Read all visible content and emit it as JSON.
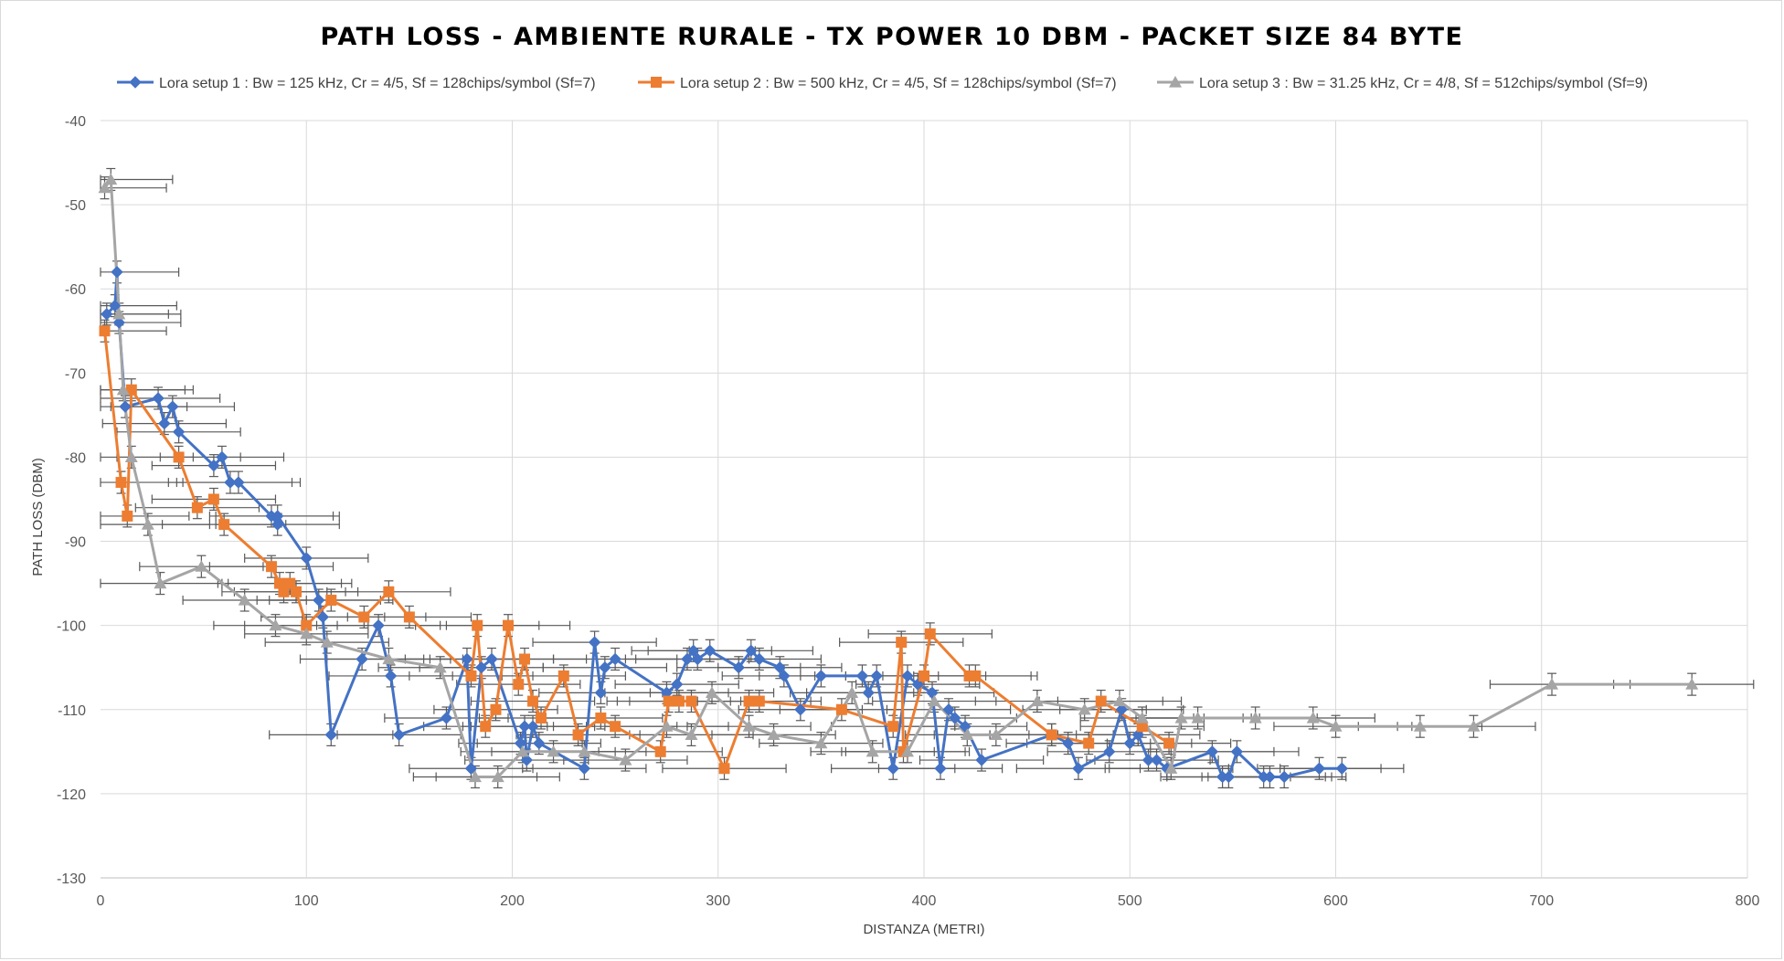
{
  "chart_data": {
    "type": "scatter",
    "title": "PATH LOSS - AMBIENTE RURALE - TX POWER 10 DBM - PACKET SIZE 84 BYTE",
    "xlabel": "DISTANZA (METRI)",
    "ylabel": "PATH LOSS (DBM)",
    "xlim": [
      0,
      800
    ],
    "ylim": [
      -130,
      -40
    ],
    "xticks": [
      "0",
      "100",
      "200",
      "300",
      "400",
      "500",
      "600",
      "700",
      "800"
    ],
    "yticks": [
      "-40",
      "-50",
      "-60",
      "-70",
      "-80",
      "-90",
      "-100",
      "-110",
      "-120",
      "-130"
    ],
    "grid": true,
    "legend_position": "top",
    "lines_connected": true,
    "error_bar_color": "#595959",
    "series": [
      {
        "name": "Lora setup 1 : Bw = 125 kHz, Cr = 4/5, Sf = 128chips/symbol (Sf=7)",
        "color": "#4472C4",
        "marker": "diamond",
        "points": [
          [
            3,
            -63
          ],
          [
            7,
            -62
          ],
          [
            8,
            -58
          ],
          [
            9,
            -64
          ],
          [
            12,
            -74
          ],
          [
            28,
            -73
          ],
          [
            31,
            -76
          ],
          [
            35,
            -74
          ],
          [
            38,
            -77
          ],
          [
            55,
            -81
          ],
          [
            59,
            -80
          ],
          [
            63,
            -83
          ],
          [
            67,
            -83
          ],
          [
            83,
            -87
          ],
          [
            86,
            -88
          ],
          [
            86,
            -87
          ],
          [
            100,
            -92
          ],
          [
            106,
            -97
          ],
          [
            108,
            -99
          ],
          [
            112,
            -113
          ],
          [
            127,
            -104
          ],
          [
            135,
            -100
          ],
          [
            141,
            -106
          ],
          [
            145,
            -113
          ],
          [
            168,
            -111
          ],
          [
            178,
            -104
          ],
          [
            180,
            -117
          ],
          [
            185,
            -105
          ],
          [
            190,
            -104
          ],
          [
            204,
            -114
          ],
          [
            206,
            -112
          ],
          [
            207,
            -116
          ],
          [
            210,
            -112
          ],
          [
            213,
            -114
          ],
          [
            235,
            -117
          ],
          [
            240,
            -102
          ],
          [
            243,
            -108
          ],
          [
            245,
            -105
          ],
          [
            250,
            -104
          ],
          [
            275,
            -108
          ],
          [
            280,
            -107
          ],
          [
            285,
            -104
          ],
          [
            288,
            -103
          ],
          [
            290,
            -104
          ],
          [
            296,
            -103
          ],
          [
            310,
            -105
          ],
          [
            316,
            -103
          ],
          [
            320,
            -104
          ],
          [
            330,
            -105
          ],
          [
            332,
            -106
          ],
          [
            340,
            -110
          ],
          [
            350,
            -106
          ],
          [
            370,
            -106
          ],
          [
            373,
            -108
          ],
          [
            377,
            -106
          ],
          [
            385,
            -117
          ],
          [
            392,
            -106
          ],
          [
            397,
            -107
          ],
          [
            404,
            -108
          ],
          [
            408,
            -117
          ],
          [
            412,
            -110
          ],
          [
            415,
            -111
          ],
          [
            420,
            -112
          ],
          [
            428,
            -116
          ],
          [
            462,
            -113
          ],
          [
            470,
            -114
          ],
          [
            475,
            -117
          ],
          [
            490,
            -115
          ],
          [
            496,
            -110
          ],
          [
            500,
            -114
          ],
          [
            504,
            -113
          ],
          [
            509,
            -116
          ],
          [
            513,
            -116
          ],
          [
            518,
            -117
          ],
          [
            540,
            -115
          ],
          [
            545,
            -118
          ],
          [
            548,
            -118
          ],
          [
            552,
            -115
          ],
          [
            565,
            -118
          ],
          [
            568,
            -118
          ],
          [
            575,
            -118
          ],
          [
            592,
            -117
          ],
          [
            603,
            -117
          ]
        ],
        "x_error": 30,
        "y_error": 1.3
      },
      {
        "name": "Lora setup 2 : Bw = 500 kHz, Cr = 4/5, Sf = 128chips/symbol (Sf=7)",
        "color": "#ED7D31",
        "marker": "square",
        "points": [
          [
            2,
            -65
          ],
          [
            10,
            -83
          ],
          [
            13,
            -87
          ],
          [
            15,
            -72
          ],
          [
            38,
            -80
          ],
          [
            47,
            -86
          ],
          [
            55,
            -85
          ],
          [
            60,
            -88
          ],
          [
            83,
            -93
          ],
          [
            87,
            -95
          ],
          [
            89,
            -96
          ],
          [
            92,
            -95
          ],
          [
            95,
            -96
          ],
          [
            100,
            -100
          ],
          [
            112,
            -97
          ],
          [
            128,
            -99
          ],
          [
            140,
            -96
          ],
          [
            150,
            -99
          ],
          [
            180,
            -106
          ],
          [
            183,
            -100
          ],
          [
            187,
            -112
          ],
          [
            192,
            -110
          ],
          [
            198,
            -100
          ],
          [
            203,
            -107
          ],
          [
            206,
            -104
          ],
          [
            210,
            -109
          ],
          [
            214,
            -111
          ],
          [
            225,
            -106
          ],
          [
            232,
            -113
          ],
          [
            243,
            -111
          ],
          [
            250,
            -112
          ],
          [
            272,
            -115
          ],
          [
            276,
            -109
          ],
          [
            281,
            -109
          ],
          [
            287,
            -109
          ],
          [
            303,
            -117
          ],
          [
            315,
            -109
          ],
          [
            320,
            -109
          ],
          [
            360,
            -110
          ],
          [
            385,
            -112
          ],
          [
            389,
            -102
          ],
          [
            390,
            -115
          ],
          [
            400,
            -106
          ],
          [
            403,
            -101
          ],
          [
            422,
            -106
          ],
          [
            425,
            -106
          ],
          [
            462,
            -113
          ],
          [
            480,
            -114
          ],
          [
            486,
            -109
          ],
          [
            506,
            -112
          ],
          [
            519,
            -114
          ]
        ],
        "x_error": 30,
        "y_error": 1.3
      },
      {
        "name": "Lora setup 3 : Bw = 31.25 kHz, Cr = 4/8, Sf = 512chips/symbol (Sf=9)",
        "color": "#A5A5A5",
        "marker": "triangle",
        "points": [
          [
            2,
            -48
          ],
          [
            5,
            -47
          ],
          [
            9,
            -63
          ],
          [
            11,
            -72
          ],
          [
            15,
            -80
          ],
          [
            23,
            -88
          ],
          [
            29,
            -95
          ],
          [
            49,
            -93
          ],
          [
            70,
            -97
          ],
          [
            85,
            -100
          ],
          [
            100,
            -101
          ],
          [
            110,
            -102
          ],
          [
            140,
            -104
          ],
          [
            165,
            -105
          ],
          [
            182,
            -118
          ],
          [
            193,
            -118
          ],
          [
            205,
            -115
          ],
          [
            220,
            -115
          ],
          [
            235,
            -115
          ],
          [
            255,
            -116
          ],
          [
            275,
            -112
          ],
          [
            287,
            -113
          ],
          [
            297,
            -108
          ],
          [
            315,
            -112
          ],
          [
            327,
            -113
          ],
          [
            350,
            -114
          ],
          [
            365,
            -108
          ],
          [
            375,
            -115
          ],
          [
            392,
            -115
          ],
          [
            405,
            -109
          ],
          [
            421,
            -113
          ],
          [
            435,
            -113
          ],
          [
            455,
            -109
          ],
          [
            478,
            -110
          ],
          [
            495,
            -109
          ],
          [
            506,
            -111
          ],
          [
            520,
            -117
          ],
          [
            525,
            -111
          ],
          [
            533,
            -111
          ],
          [
            561,
            -111
          ],
          [
            589,
            -111
          ],
          [
            600,
            -112
          ],
          [
            641,
            -112
          ],
          [
            667,
            -112
          ],
          [
            705,
            -107
          ],
          [
            773,
            -107
          ]
        ],
        "x_error": 30,
        "y_error": 1.3
      }
    ]
  }
}
